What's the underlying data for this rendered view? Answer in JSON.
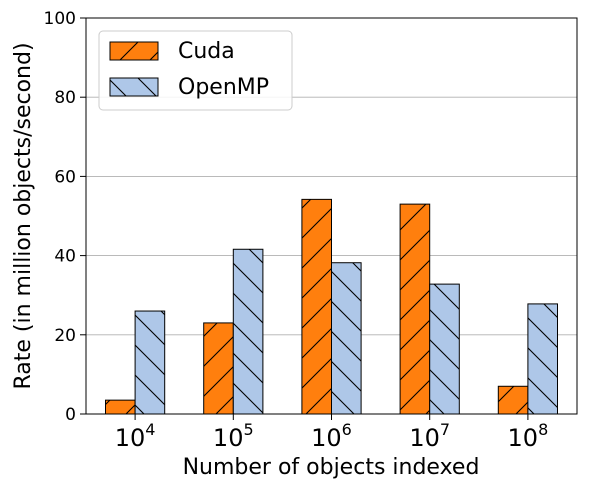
{
  "chart_data": {
    "type": "bar",
    "title": "",
    "xlabel": "Number of objects indexed",
    "ylabel": "Rate (in million objects/second)",
    "ylim": [
      0,
      100
    ],
    "yticks": [
      0,
      20,
      40,
      60,
      80,
      100
    ],
    "grid": "horizontal",
    "legend_position": "top-left",
    "categories": [
      {
        "base": "10",
        "exp": "4"
      },
      {
        "base": "10",
        "exp": "5"
      },
      {
        "base": "10",
        "exp": "6"
      },
      {
        "base": "10",
        "exp": "7"
      },
      {
        "base": "10",
        "exp": "8"
      }
    ],
    "series": [
      {
        "name": "Cuda",
        "values": [
          3.5,
          23,
          54.2,
          53,
          7
        ],
        "color": "#ff7f0e",
        "hatch": "forward"
      },
      {
        "name": "OpenMP",
        "values": [
          26,
          41.6,
          38.2,
          32.8,
          27.8
        ],
        "color": "#aec7e8",
        "hatch": "back"
      }
    ]
  }
}
